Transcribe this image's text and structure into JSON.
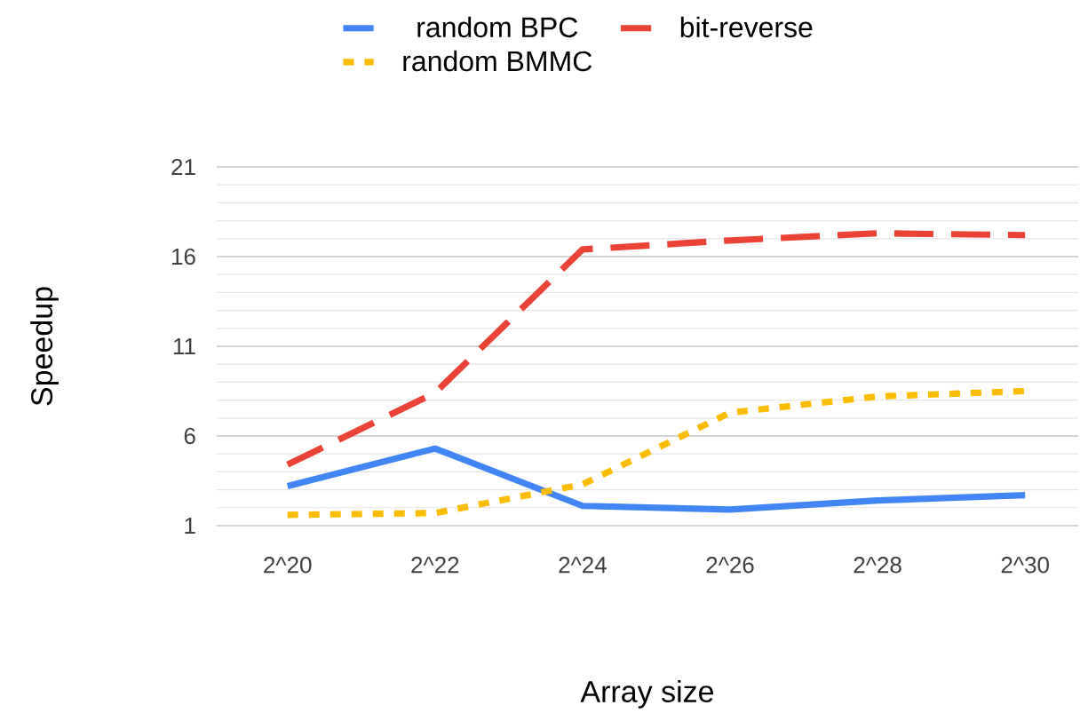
{
  "chart_data": {
    "type": "line",
    "xlabel": "Array size",
    "ylabel": "Speedup",
    "categories": [
      "2^20",
      "2^22",
      "2^24",
      "2^26",
      "2^28",
      "2^30"
    ],
    "series": [
      {
        "name": "random BPC",
        "color": "#4285f4",
        "line_style": "solid",
        "values": [
          3.2,
          5.3,
          2.1,
          1.9,
          2.4,
          2.7
        ]
      },
      {
        "name": "bit-reverse",
        "color": "#ea4335",
        "line_style": "dashed",
        "values": [
          4.4,
          8.4,
          16.4,
          16.9,
          17.3,
          17.2
        ]
      },
      {
        "name": "random BMMC",
        "color": "#fbbc04",
        "line_style": "dotted",
        "values": [
          1.6,
          1.7,
          3.3,
          7.3,
          8.2,
          8.5
        ]
      }
    ],
    "ylim": [
      1,
      21
    ],
    "yticks": [
      1,
      6,
      11,
      16,
      21
    ],
    "grid": "y",
    "legend": "top",
    "marker": "none"
  }
}
